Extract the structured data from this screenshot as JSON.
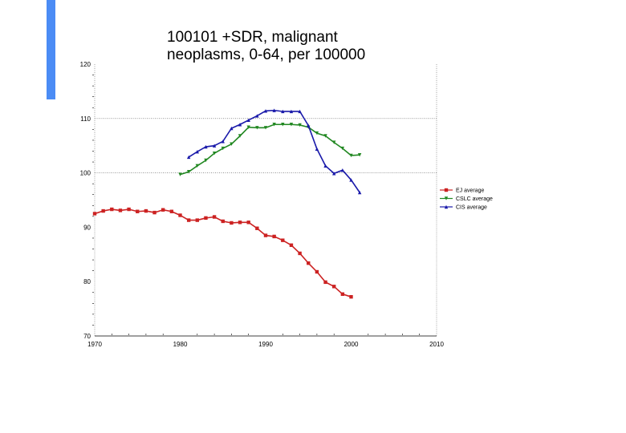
{
  "chart_data": {
    "type": "line",
    "title_lines": [
      "100101 +SDR, malignant",
      "neoplasms, 0-64, per 100000"
    ],
    "xlabel": "",
    "ylabel": "",
    "xlim": [
      1970,
      2010
    ],
    "ylim": [
      70,
      120
    ],
    "x_ticks": [
      1970,
      1980,
      1990,
      2000,
      2010
    ],
    "y_ticks": [
      70,
      80,
      90,
      100,
      110,
      120
    ],
    "gridlines_y": [
      100,
      110
    ],
    "legend_position": "right",
    "series": [
      {
        "name": "EJ average",
        "color": "#cc2222",
        "marker": "square",
        "x": [
          1970,
          1971,
          1972,
          1973,
          1974,
          1975,
          1976,
          1977,
          1978,
          1979,
          1980,
          1981,
          1982,
          1983,
          1984,
          1985,
          1986,
          1987,
          1988,
          1989,
          1990,
          1991,
          1992,
          1993,
          1994,
          1995,
          1996,
          1997,
          1998,
          1999,
          2000
        ],
        "values": [
          92.5,
          93.0,
          93.3,
          93.1,
          93.3,
          92.9,
          93.0,
          92.7,
          93.2,
          92.9,
          92.2,
          91.3,
          91.3,
          91.7,
          91.9,
          91.1,
          90.8,
          90.9,
          90.9,
          89.8,
          88.5,
          88.3,
          87.6,
          86.7,
          85.2,
          83.4,
          81.8,
          79.9,
          79.1,
          77.7,
          77.2
        ]
      },
      {
        "name": "CSLC average",
        "color": "#228822",
        "marker": "triangle-down",
        "x": [
          1980,
          1981,
          1982,
          1983,
          1984,
          1985,
          1986,
          1987,
          1988,
          1989,
          1990,
          1991,
          1992,
          1993,
          1994,
          1995,
          1996,
          1997,
          1998,
          1999,
          2000,
          2001
        ],
        "values": [
          99.7,
          100.2,
          101.3,
          102.3,
          103.6,
          104.5,
          105.3,
          106.8,
          108.4,
          108.3,
          108.3,
          108.9,
          108.9,
          108.9,
          108.8,
          108.4,
          107.3,
          106.8,
          105.6,
          104.5,
          103.2,
          103.3
        ]
      },
      {
        "name": "CIS average",
        "color": "#1a1aaa",
        "marker": "triangle-up",
        "x": [
          1981,
          1982,
          1983,
          1984,
          1985,
          1986,
          1987,
          1988,
          1989,
          1990,
          1991,
          1992,
          1993,
          1994,
          1995,
          1996,
          1997,
          1998,
          1999,
          2000,
          2001
        ],
        "values": [
          102.9,
          103.9,
          104.8,
          105.0,
          105.8,
          108.2,
          108.9,
          109.7,
          110.5,
          111.4,
          111.5,
          111.3,
          111.3,
          111.3,
          108.7,
          104.4,
          101.3,
          99.9,
          100.5,
          98.7,
          96.4
        ]
      }
    ]
  }
}
